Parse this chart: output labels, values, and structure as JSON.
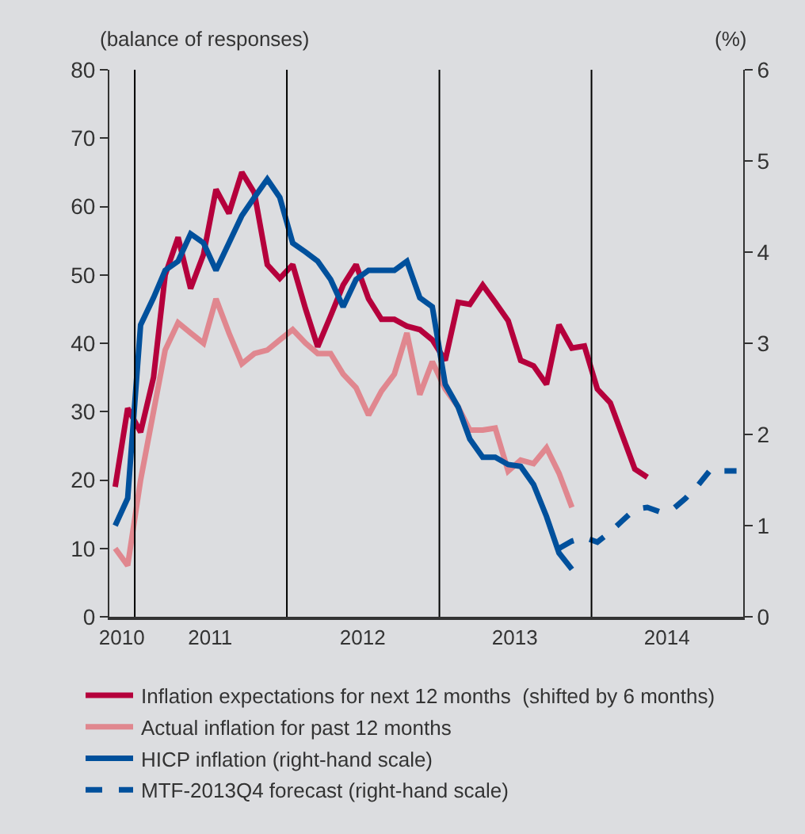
{
  "chart_data": {
    "type": "line",
    "ylabel": "(balance of responses)",
    "y2label": "(%)",
    "x": [
      "2010-11-15",
      "2010-12-15",
      "2011-01-15",
      "2011-02-15",
      "2011-03-15",
      "2011-04-15",
      "2011-05-15",
      "2011-06-15",
      "2011-07-15",
      "2011-08-15",
      "2011-09-15",
      "2011-10-15",
      "2011-11-15",
      "2011-12-15",
      "2012-01-15",
      "2012-02-15",
      "2012-03-15",
      "2012-04-15",
      "2012-05-15",
      "2012-06-15",
      "2012-07-15",
      "2012-08-15",
      "2012-09-15",
      "2012-10-15",
      "2012-11-15",
      "2012-12-15",
      "2013-01-15",
      "2013-02-15",
      "2013-03-15",
      "2013-04-15",
      "2013-05-15",
      "2013-06-15",
      "2013-07-15",
      "2013-08-15",
      "2013-09-15",
      "2013-10-15",
      "2013-11-15",
      "2013-12-15",
      "2014-01-15",
      "2014-02-15",
      "2014-03-15",
      "2014-04-15",
      "2014-05-15",
      "2014-06-15",
      "2014-07-15",
      "2014-08-15",
      "2014-09-15",
      "2014-10-15",
      "2014-11-15",
      "2014-12-15"
    ],
    "xlim": [
      "2010-11-01",
      "2014-12-31"
    ],
    "xticks": [
      {
        "value": "2010-12-01",
        "label": "2010"
      },
      {
        "value": "2011-07-01",
        "label": "2011"
      },
      {
        "value": "2012-07-01",
        "label": "2012"
      },
      {
        "value": "2013-07-01",
        "label": "2013"
      },
      {
        "value": "2014-07-01",
        "label": "2014"
      }
    ],
    "ylim": [
      0,
      80
    ],
    "yticks": [
      0,
      10,
      20,
      30,
      40,
      50,
      60,
      70,
      80
    ],
    "y2lim": [
      0,
      6
    ],
    "y2ticks": [
      0,
      1,
      2,
      3,
      4,
      5,
      6
    ],
    "grid": false,
    "legend": "bottom",
    "marker": "none",
    "ref_lines": [
      {
        "axis": "x",
        "value": "2011-01-01",
        "color": "#000000"
      },
      {
        "axis": "x",
        "value": "2012-01-01",
        "color": "#000000"
      },
      {
        "axis": "x",
        "value": "2013-01-01",
        "color": "#000000"
      },
      {
        "axis": "x",
        "value": "2014-01-01",
        "color": "#000000"
      }
    ],
    "series": [
      {
        "name": "Inflation expectations for next 12 months  (shifted by 6 months)",
        "color": "#b5003c",
        "line_style": "solid",
        "values": [
          19,
          30.5,
          27,
          35,
          50,
          55.5,
          48,
          53,
          62.5,
          59,
          65,
          62,
          51.5,
          49.5,
          51.5,
          45,
          39.5,
          44,
          48.5,
          51.5,
          46.5,
          43.5,
          43.5,
          42.5,
          42,
          40.5,
          37.5,
          46,
          45.7,
          48.5,
          46,
          43.3,
          37.5,
          36.7,
          34,
          42.7,
          39.3,
          39.6,
          33.3,
          31.3,
          26.7,
          21.6,
          20.4,
          null,
          null,
          null,
          null,
          null,
          null,
          null
        ]
      },
      {
        "name": "Actual inflation for past 12 months",
        "color": "#e0878f",
        "line_style": "solid",
        "values": [
          10,
          7.5,
          20,
          30,
          39,
          43,
          41.5,
          40,
          46.5,
          41.5,
          37,
          38.5,
          39,
          40.5,
          42,
          40,
          38.5,
          38.5,
          35.5,
          33.5,
          29.5,
          33,
          35.5,
          41.5,
          32.5,
          37.3,
          33.3,
          30.7,
          27.3,
          27.3,
          27.6,
          21.3,
          22.9,
          22.4,
          24.7,
          21,
          16,
          null,
          null,
          null,
          null,
          null,
          null,
          null,
          null,
          null,
          null,
          null,
          null,
          null
        ]
      },
      {
        "name": "HICP inflation (right-hand scale)",
        "color": "#00509c",
        "line_style": "solid",
        "axis": "y2",
        "values": [
          1.0,
          1.3,
          3.2,
          3.5,
          3.8,
          3.9,
          4.2,
          4.1,
          3.8,
          4.1,
          4.4,
          4.6,
          4.8,
          4.6,
          4.1,
          4.0,
          3.9,
          3.7,
          3.4,
          3.7,
          3.8,
          3.8,
          3.8,
          3.9,
          3.5,
          3.4,
          2.55,
          2.3,
          1.95,
          1.75,
          1.75,
          1.67,
          1.65,
          1.45,
          1.1,
          0.7,
          0.52,
          null,
          null,
          null,
          null,
          null,
          null,
          null,
          null,
          null,
          null,
          null,
          null,
          null
        ]
      },
      {
        "name": "MTF-2013Q4 forecast (right-hand scale)",
        "color": "#00509c",
        "line_style": "dashed",
        "axis": "y2",
        "values": [
          null,
          null,
          null,
          null,
          null,
          null,
          null,
          null,
          null,
          null,
          null,
          null,
          null,
          null,
          null,
          null,
          null,
          null,
          null,
          null,
          null,
          null,
          null,
          null,
          null,
          null,
          null,
          null,
          null,
          null,
          null,
          null,
          null,
          null,
          null,
          0.75,
          0.83,
          0.87,
          0.82,
          0.93,
          1.05,
          1.18,
          1.2,
          1.15,
          1.18,
          1.3,
          1.45,
          1.62,
          1.6,
          1.6
        ]
      }
    ]
  }
}
